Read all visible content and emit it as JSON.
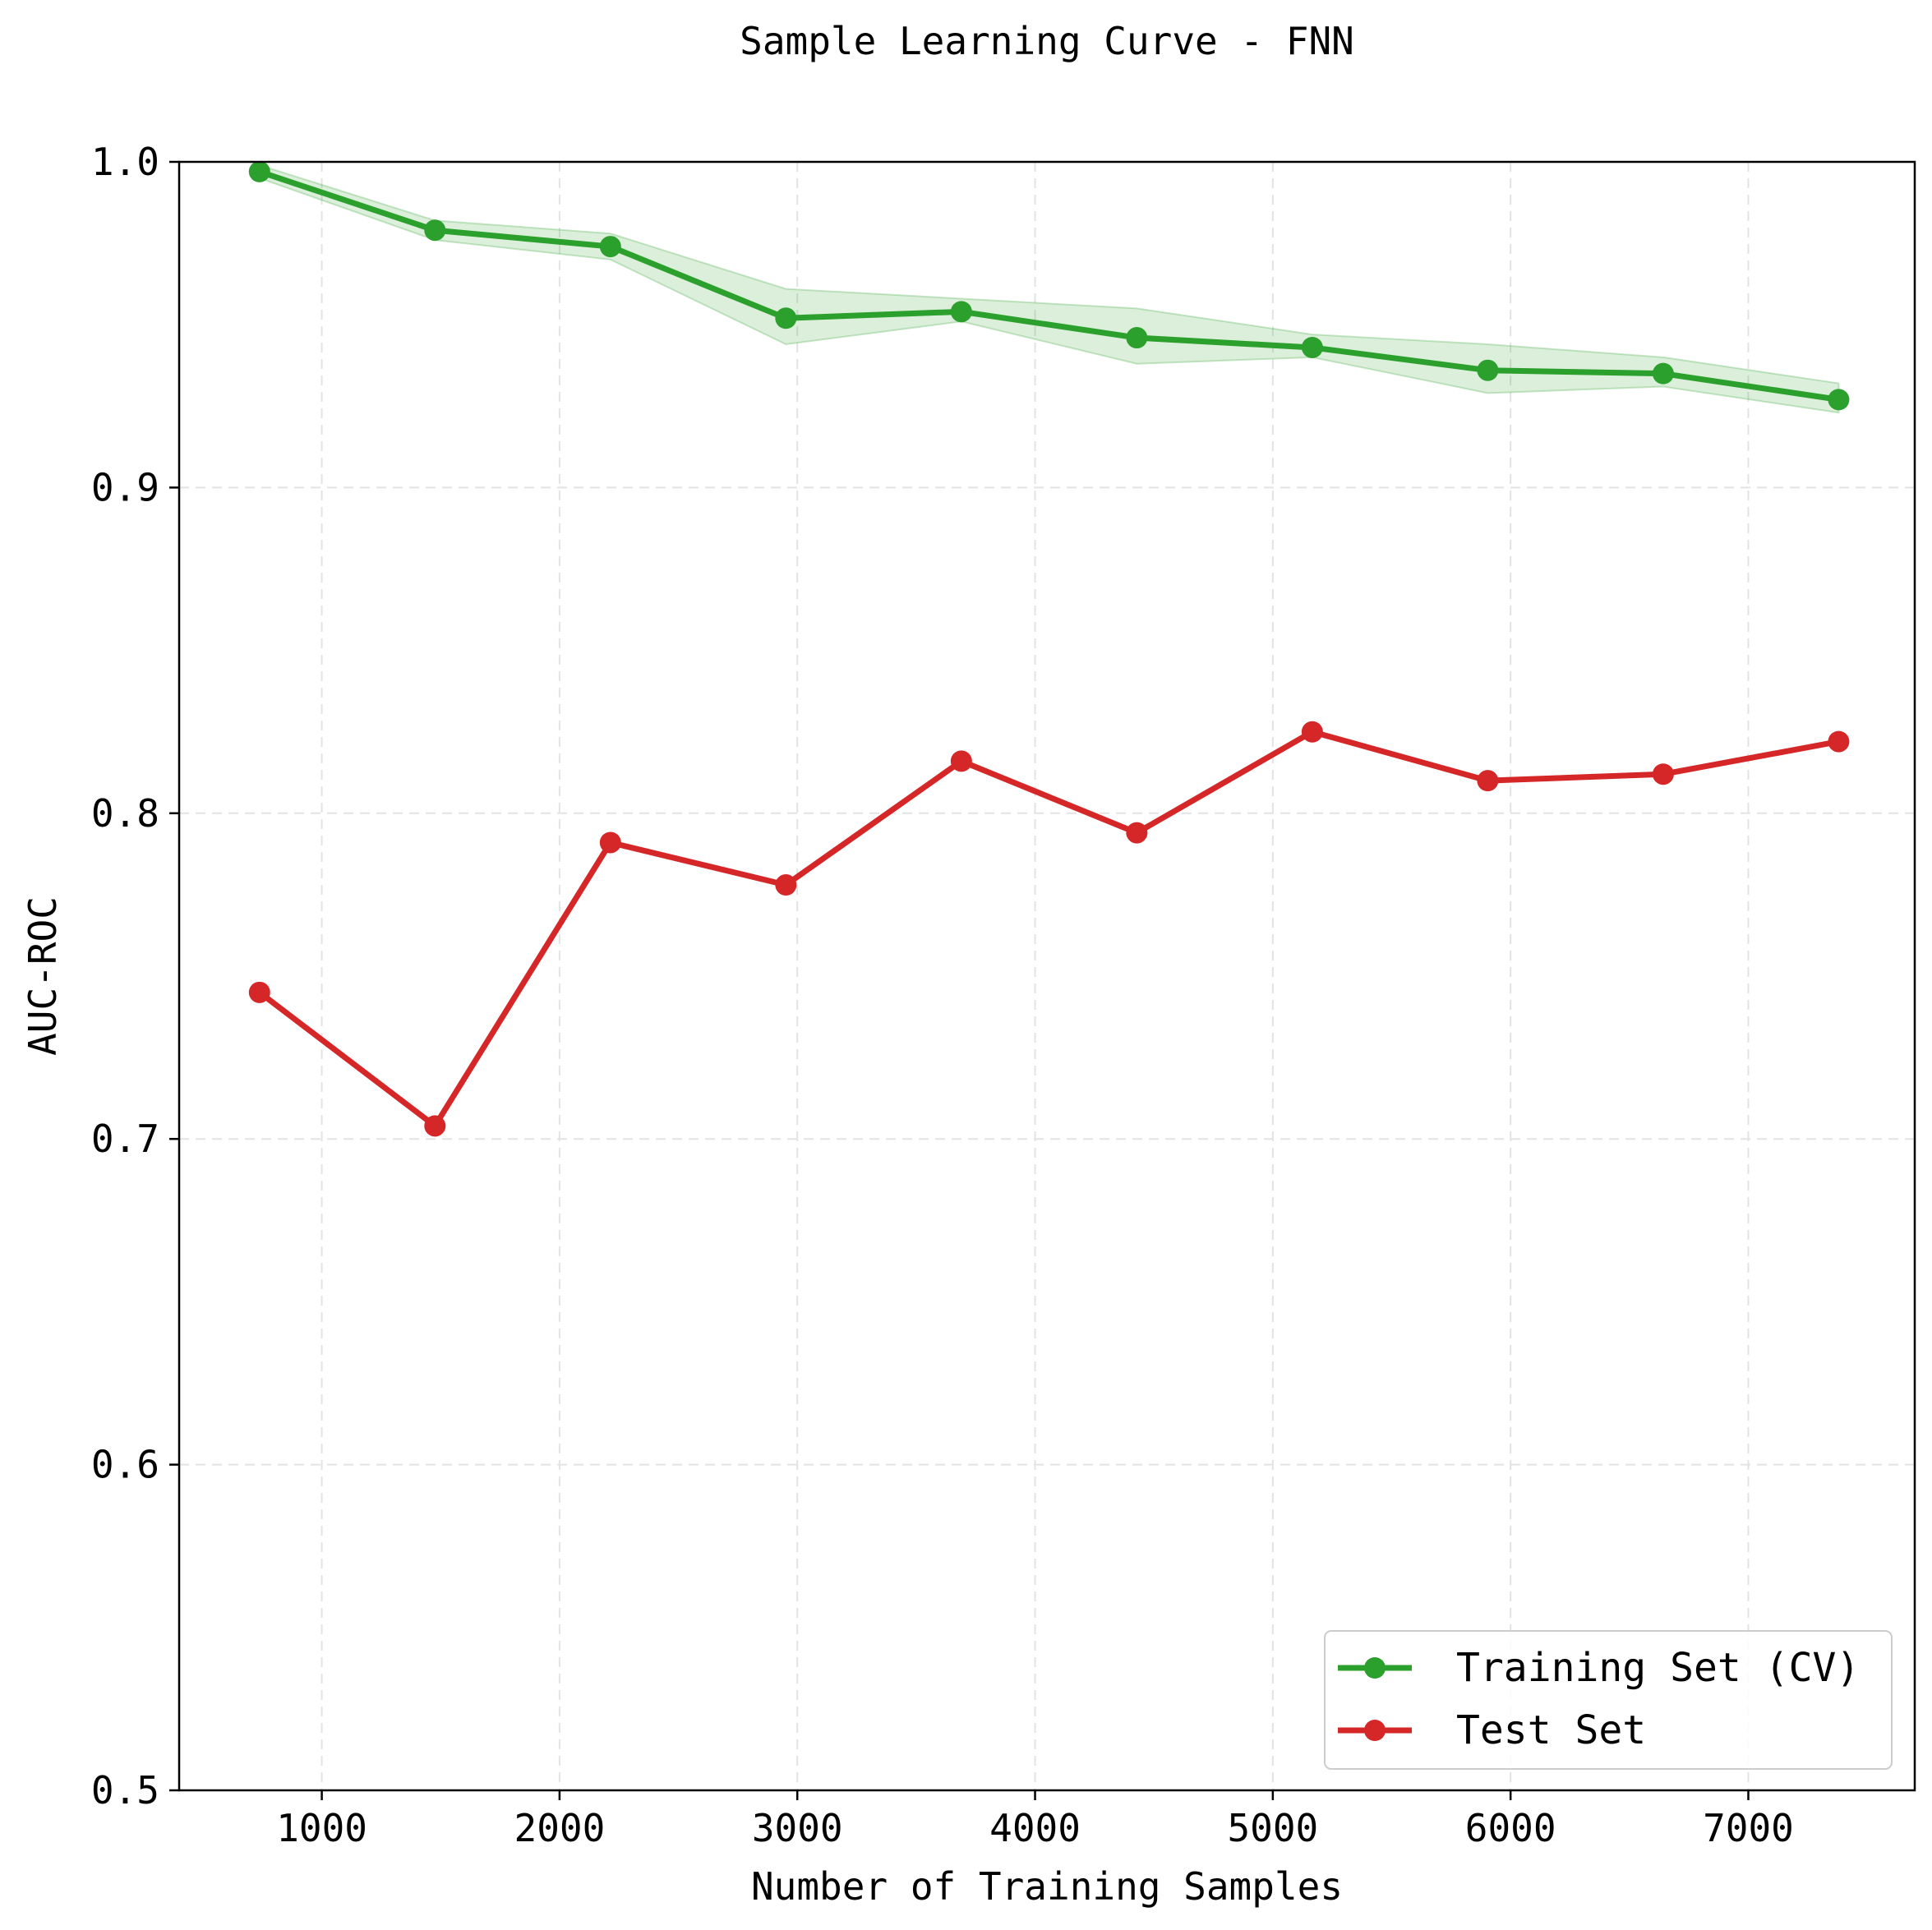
{
  "chart_data": {
    "type": "line",
    "title": "Sample Learning Curve - FNN",
    "xlabel": "Number of Training Samples",
    "ylabel": "AUC-ROC",
    "xlim": [
      400,
      7700
    ],
    "ylim": [
      0.5,
      1.0
    ],
    "xticks": [
      1000,
      2000,
      3000,
      4000,
      5000,
      6000,
      7000
    ],
    "yticks": [
      0.5,
      0.6,
      0.7,
      0.8,
      0.9,
      1.0
    ],
    "xtick_labels": [
      "1000",
      "2000",
      "3000",
      "4000",
      "5000",
      "6000",
      "7000"
    ],
    "ytick_labels": [
      "0.5",
      "0.6",
      "0.7",
      "0.8",
      "0.9",
      "1.0"
    ],
    "grid": true,
    "legend_position": "lower-right",
    "x": [
      738,
      1476,
      2214,
      2952,
      3690,
      4428,
      5166,
      5904,
      6642,
      7380
    ],
    "series": [
      {
        "name": "Training Set (CV)",
        "color": "#2ca02c",
        "band_color": "#2ca02c",
        "values": [
          0.997,
          0.979,
          0.974,
          0.952,
          0.954,
          0.946,
          0.943,
          0.936,
          0.935,
          0.927
        ],
        "band_low": [
          0.995,
          0.976,
          0.97,
          0.944,
          0.951,
          0.938,
          0.94,
          0.929,
          0.931,
          0.923
        ],
        "band_high": [
          0.999,
          0.982,
          0.978,
          0.961,
          0.958,
          0.955,
          0.947,
          0.944,
          0.94,
          0.932
        ]
      },
      {
        "name": "Test Set",
        "color": "#d62728",
        "values": [
          0.745,
          0.704,
          0.791,
          0.778,
          0.816,
          0.794,
          0.825,
          0.81,
          0.812,
          0.822
        ]
      }
    ]
  }
}
